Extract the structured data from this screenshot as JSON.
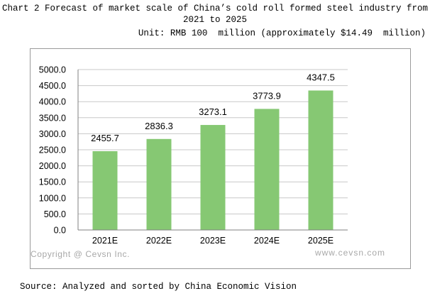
{
  "header": {
    "title": "Chart 2 Forecast of market scale of China’s cold roll formed steel industry from 2021 to 2025",
    "unit": "Unit: RMB 100  million (approximately $14.49  million)"
  },
  "watermarks": {
    "left": "Copyright @ Cevsn Inc.",
    "right": "www.cevsn.com"
  },
  "footer": {
    "source": "Source: Analyzed and sorted by China Economic Vision"
  },
  "colors": {
    "bar": "#86c873",
    "grid": "#c8c8c8",
    "axis": "#808080",
    "watermark": "#a8a8a8"
  },
  "chart_data": {
    "type": "bar",
    "title": "Chart 2 Forecast of market scale of China’s cold roll formed steel industry from 2021 to 2025",
    "xlabel": "",
    "ylabel": "",
    "categories": [
      "2021E",
      "2022E",
      "2023E",
      "2024E",
      "2025E"
    ],
    "values": [
      2455.7,
      2836.3,
      3273.1,
      3773.9,
      4347.5
    ],
    "value_labels": [
      "2455.7",
      "2836.3",
      "3273.1",
      "3773.9",
      "4347.5"
    ],
    "ylim": [
      0,
      5000
    ],
    "yticks": [
      "0.0",
      "500.0",
      "1000.0",
      "1500.0",
      "2000.0",
      "2500.0",
      "3000.0",
      "3500.0",
      "4000.0",
      "4500.0",
      "5000.0"
    ],
    "grid": true,
    "legend": "none"
  }
}
